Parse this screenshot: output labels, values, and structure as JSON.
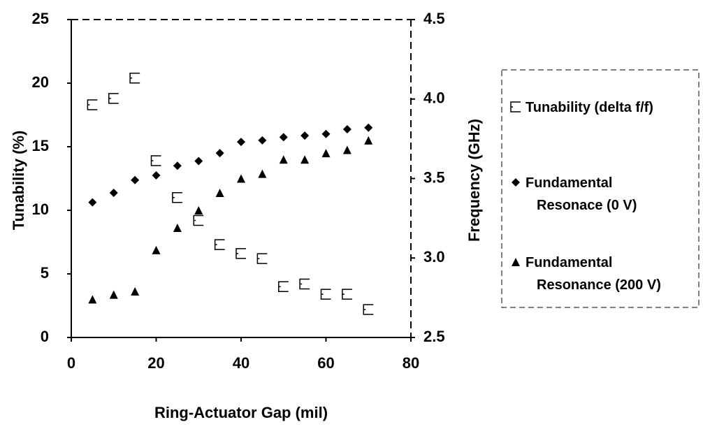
{
  "chart_data": {
    "type": "scatter",
    "x_label": "Ring-Actuator Gap (mil)",
    "y_label": "Tunability (%)",
    "y2_label": "Frequency (GHz)",
    "x": [
      5,
      10,
      15,
      20,
      25,
      30,
      35,
      40,
      45,
      50,
      55,
      60,
      65,
      70
    ],
    "series": [
      {
        "name": "Tunability (delta f/f)",
        "color": "#000000",
        "marker": "square",
        "values": [
          18.3,
          18.8,
          20.4,
          13.9,
          11.0,
          9.2,
          7.3,
          6.6,
          6.2,
          4.0,
          4.2,
          3.4,
          3.4,
          2.2
        ]
      },
      {
        "name": "Fundamental Resonace (0 V)",
        "color": "#000000",
        "marker": "diamond",
        "axis": "y2",
        "values": [
          3.35,
          3.41,
          3.49,
          3.52,
          3.58,
          3.61,
          3.66,
          3.73,
          3.74,
          3.76,
          3.77,
          3.78,
          3.81,
          3.82
        ]
      },
      {
        "name": "Fundamental Resonance (200 V)",
        "color": "#000000",
        "marker": "triangle",
        "axis": "y2",
        "values": [
          2.74,
          2.77,
          2.79,
          3.05,
          3.19,
          3.3,
          3.41,
          3.5,
          3.53,
          3.62,
          3.62,
          3.66,
          3.68,
          3.74
        ]
      }
    ],
    "xlim": [
      0,
      80
    ],
    "xticks": [
      0,
      20,
      40,
      60,
      80
    ],
    "ylim": [
      0,
      25
    ],
    "yticks": [
      0,
      5,
      10,
      15,
      20,
      25
    ],
    "y2lim": [
      2.5,
      4.5
    ],
    "y2ticks": [
      2.5,
      {
        "value": 3.0,
        "label": "3.0"
      },
      3.5,
      {
        "value": 4.0,
        "label": "4.0"
      },
      4.5
    ],
    "legend": "right"
  }
}
